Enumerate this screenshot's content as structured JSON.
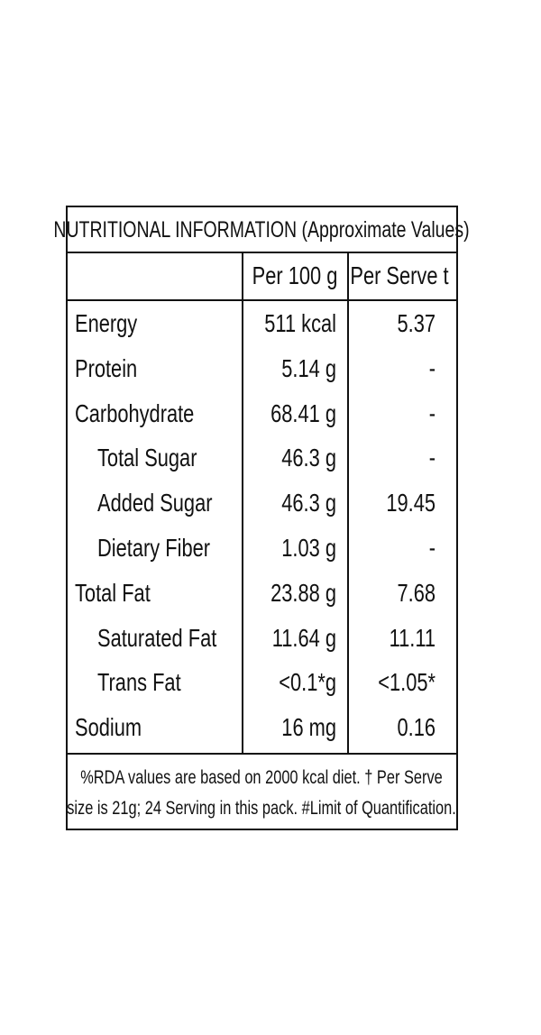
{
  "table": {
    "title": "NUTRITIONAL INFORMATION (Approximate Values)",
    "header": [
      "Per 100 g",
      "Per Serve t"
    ],
    "rows": [
      {
        "label": "Energy",
        "per100": "511 kcal",
        "perServe": "5.37",
        "indent": false
      },
      {
        "label": "Protein",
        "per100": "5.14 g",
        "perServe": "-",
        "indent": false
      },
      {
        "label": "Carbohydrate",
        "per100": "68.41 g",
        "perServe": "-",
        "indent": false
      },
      {
        "label": "Total Sugar",
        "per100": "46.3 g",
        "perServe": "-",
        "indent": true
      },
      {
        "label": "Added Sugar",
        "per100": "46.3 g",
        "perServe": "19.45",
        "indent": true
      },
      {
        "label": "Dietary Fiber",
        "per100": "1.03 g",
        "perServe": "-",
        "indent": true
      },
      {
        "label": "Total Fat",
        "per100": "23.88 g",
        "perServe": "7.68",
        "indent": false
      },
      {
        "label": "Saturated Fat",
        "per100": "11.64 g",
        "perServe": "11.11",
        "indent": true
      },
      {
        "label": "Trans Fat",
        "per100": "<0.1*g",
        "perServe": "<1.05*",
        "indent": true
      },
      {
        "label": "Sodium",
        "per100": "16 mg",
        "perServe": "0.16",
        "indent": false
      }
    ],
    "footnote": [
      "%RDA values are based on 2000 kcal diet. † Per Serve",
      "size is 21g; 24 Serving in this pack. #Limit of Quantification."
    ]
  }
}
